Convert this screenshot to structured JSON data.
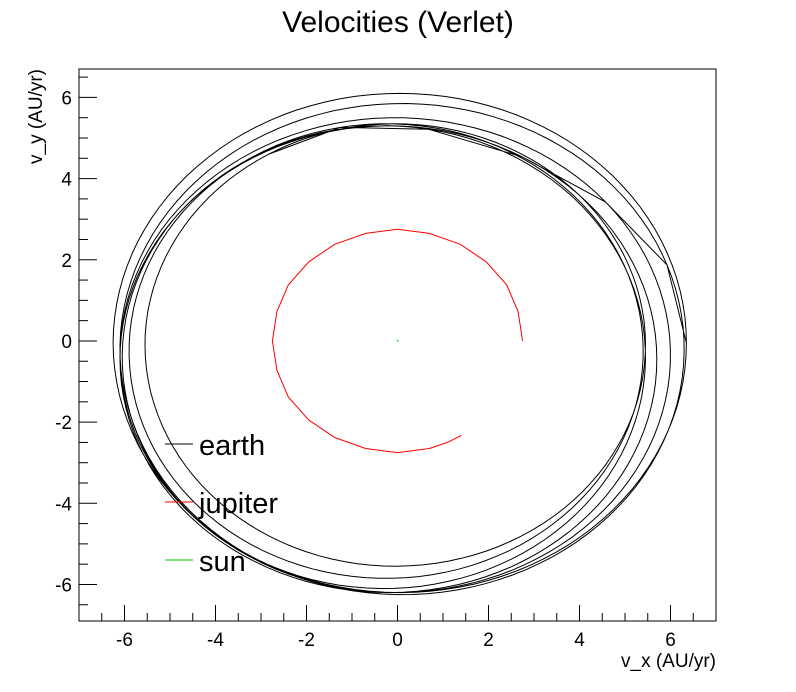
{
  "chart_data": {
    "type": "line",
    "title": "Velocities (Verlet)",
    "xlabel": "v_x (AU/yr)",
    "ylabel": "v_y (AU/yr)",
    "xlim": [
      -7.0,
      7.0
    ],
    "ylim": [
      -6.9,
      6.7
    ],
    "x_ticks": [
      -6,
      -4,
      -2,
      0,
      2,
      4,
      6
    ],
    "y_ticks": [
      -6,
      -4,
      -2,
      0,
      2,
      4,
      6
    ],
    "grid": false,
    "legend": {
      "position": "lower-left",
      "entries": [
        "earth",
        "jupiter",
        "sun"
      ]
    },
    "series": [
      {
        "name": "earth",
        "color": "#000000",
        "description_shape": "ellipse-like orbit loops drifting in phase",
        "loops": [
          {
            "cx": 0.05,
            "cy": -0.05,
            "rx": 6.3,
            "ry": 6.15
          },
          {
            "cx": 0.1,
            "cy": -0.2,
            "rx": 6.2,
            "ry": 6.05
          },
          {
            "cx": -0.05,
            "cy": -0.35,
            "rx": 6.05,
            "ry": 5.85
          },
          {
            "cx": -0.2,
            "cy": -0.45,
            "rx": 5.9,
            "ry": 5.75
          },
          {
            "cx": -0.3,
            "cy": -0.4,
            "rx": 5.75,
            "ry": 5.7
          },
          {
            "cx": -0.25,
            "cy": -0.25,
            "rx": 5.65,
            "ry": 5.6
          },
          {
            "cx": -0.05,
            "cy": -0.1,
            "rx": 5.5,
            "ry": 5.45
          }
        ]
      },
      {
        "name": "jupiter",
        "color": "#ff0000",
        "x": [
          2.75,
          2.65,
          2.4,
          1.95,
          1.38,
          0.7,
          0.0,
          -0.7,
          -1.38,
          -1.95,
          -2.4,
          -2.65,
          -2.75,
          -2.65,
          -2.4,
          -1.95,
          -1.38,
          -0.7,
          0.0,
          0.7,
          1.1,
          1.4
        ],
        "y": [
          0.0,
          0.72,
          1.38,
          1.95,
          2.38,
          2.65,
          2.75,
          2.65,
          2.38,
          1.95,
          1.38,
          0.72,
          0.0,
          -0.72,
          -1.38,
          -1.95,
          -2.38,
          -2.65,
          -2.75,
          -2.65,
          -2.5,
          -2.33
        ]
      },
      {
        "name": "sun",
        "color": "#00cc00",
        "x": [
          -0.01,
          0.0,
          0.01,
          0.0
        ],
        "y": [
          0.0,
          0.01,
          0.0,
          -0.01
        ]
      }
    ]
  }
}
